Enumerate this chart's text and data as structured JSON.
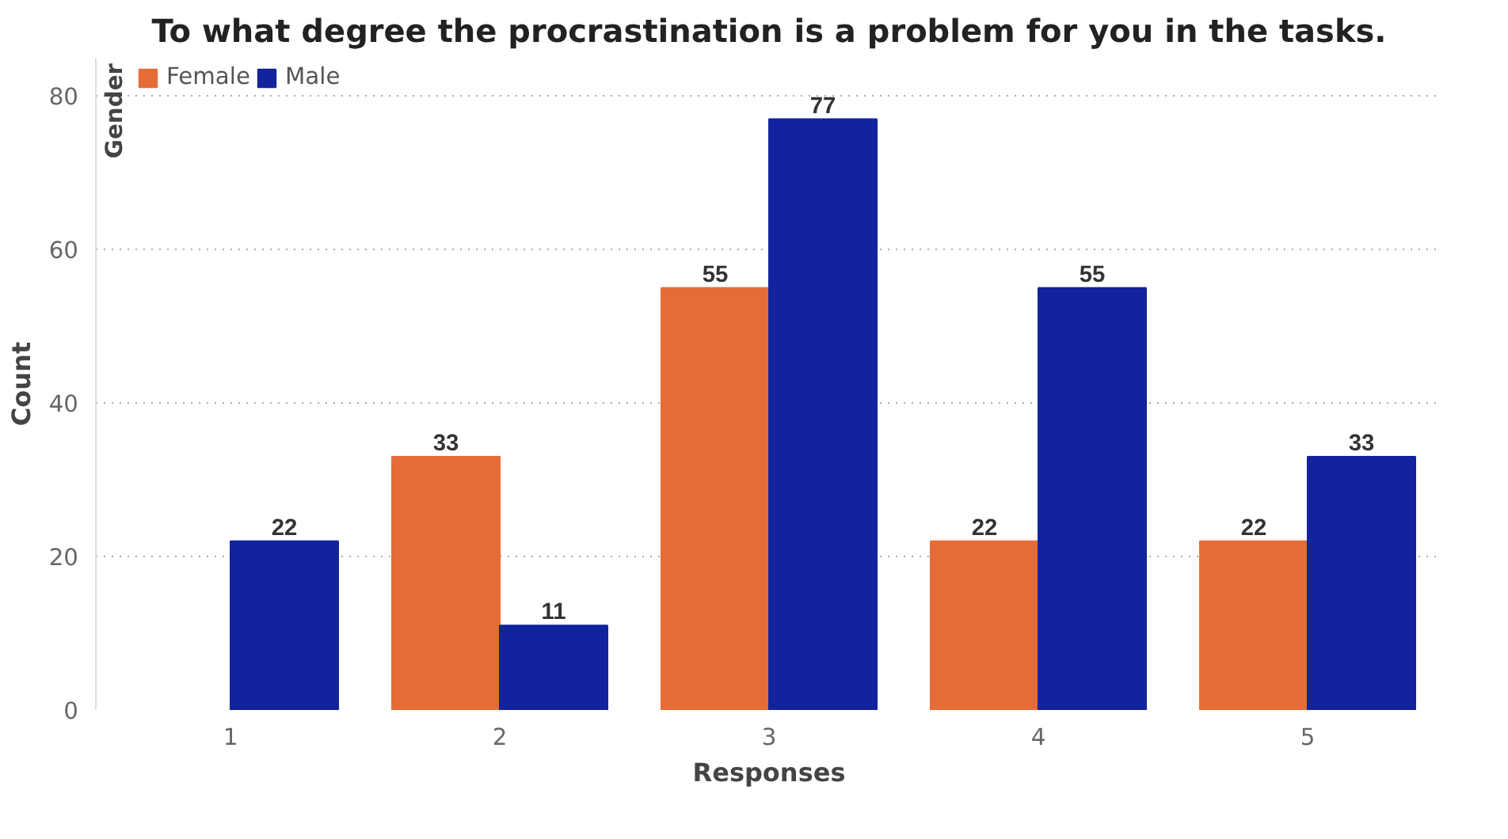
{
  "chart_data": {
    "type": "bar",
    "title": "To what degree the procrastination is a problem for you in the tasks.",
    "xlabel": "Responses",
    "ylabel": "Count",
    "legend_title": "Gender",
    "categories": [
      "1",
      "2",
      "3",
      "4",
      "5"
    ],
    "series": [
      {
        "name": "Female",
        "color": "#e66c37",
        "values": [
          null,
          33,
          55,
          22,
          22
        ]
      },
      {
        "name": "Male",
        "color": "#12239e",
        "values": [
          22,
          11,
          77,
          55,
          33
        ]
      }
    ],
    "ylim": [
      0,
      85
    ],
    "yticks": [
      0,
      20,
      40,
      60,
      80
    ],
    "grid": "y",
    "legend": "top left",
    "data_labels": true
  }
}
